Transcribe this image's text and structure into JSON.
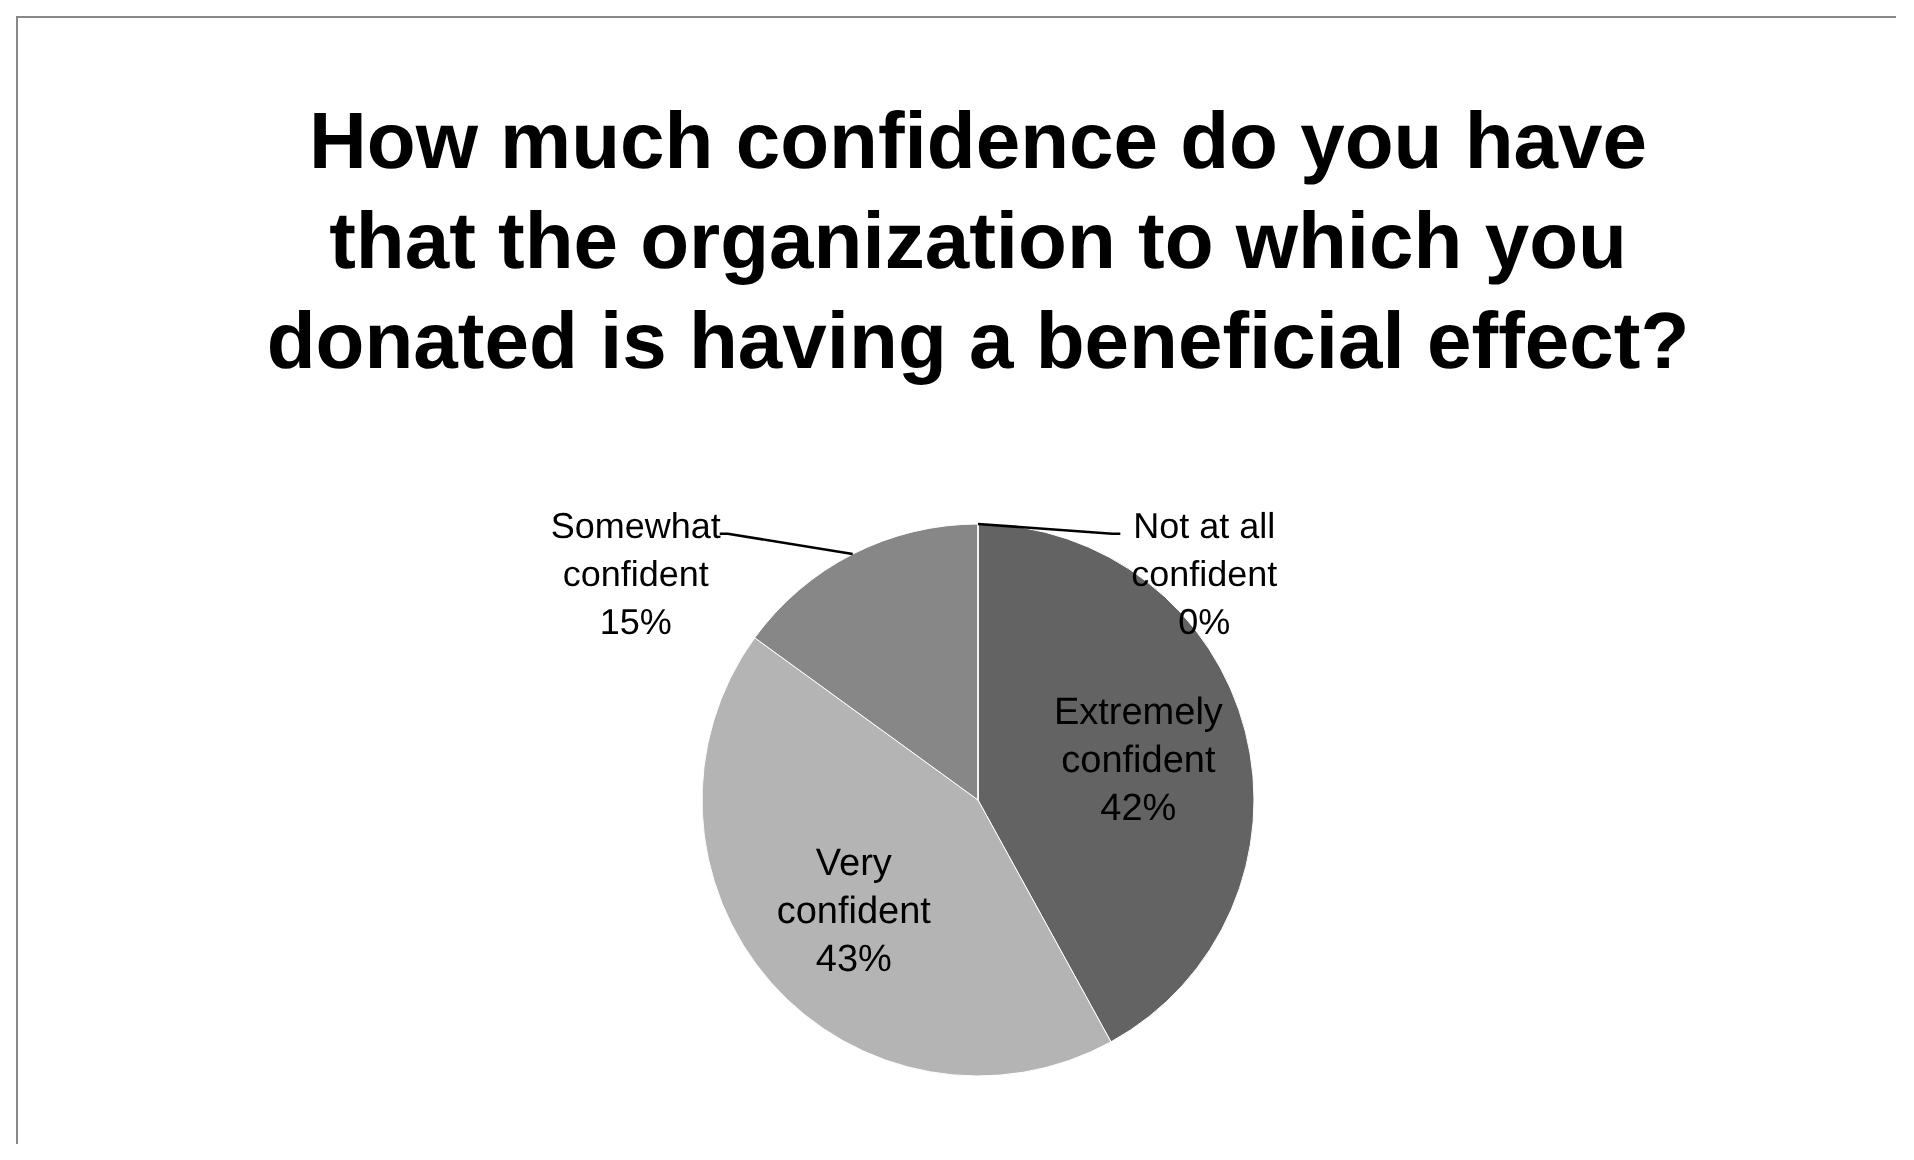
{
  "chart_data": {
    "type": "pie",
    "title": "How much confidence do you have that the organization to which you donated is having a beneficial effect?",
    "categories": [
      "Extremely confident",
      "Very confident",
      "Somewhat confident",
      "Not at all confident"
    ],
    "values": [
      42,
      43,
      15,
      0
    ],
    "value_labels": [
      "42%",
      "43%",
      "15%",
      "0%"
    ],
    "colors": [
      "#636363",
      "#b4b4b4",
      "#878787",
      "#404040"
    ]
  }
}
